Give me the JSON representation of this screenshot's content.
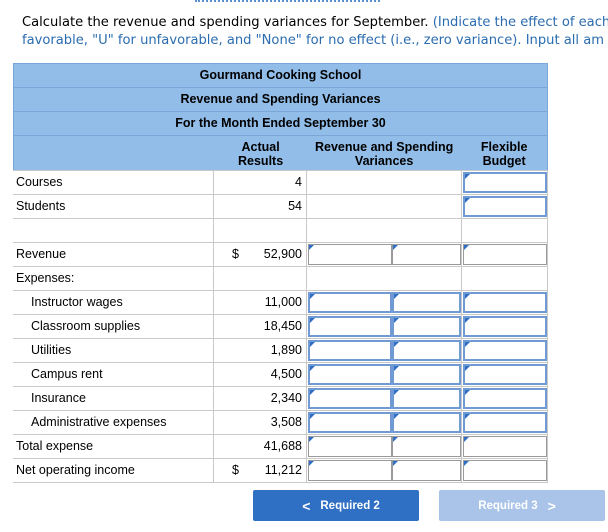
{
  "instructions": {
    "line1_black": "Calculate the revenue and spending variances for September. ",
    "line1_blue": "(Indicate the effect of each",
    "line2_blue": "favorable, \"U\" for unfavorable, and \"None\" for no effect (i.e., zero variance). Input all am"
  },
  "report": {
    "title1": "Gourmand Cooking School",
    "title2": "Revenue and Spending Variances",
    "title3": "For the Month Ended September 30",
    "col_actual": [
      "Actual",
      "Results"
    ],
    "col_variance": [
      "Revenue and Spending",
      "Variances"
    ],
    "col_flexible": [
      "Flexible",
      "Budget"
    ]
  },
  "rows": {
    "courses": {
      "label": "Courses",
      "actual": "4"
    },
    "students": {
      "label": "Students",
      "actual": "54"
    },
    "revenue": {
      "label": "Revenue",
      "currency": "$",
      "actual": "52,900"
    },
    "expenses": {
      "label": "Expenses:"
    },
    "instructor_wages": {
      "label": "Instructor wages",
      "actual": "11,000"
    },
    "classroom_supplies": {
      "label": "Classroom supplies",
      "actual": "18,450"
    },
    "utilities": {
      "label": "Utilities",
      "actual": "1,890"
    },
    "campus_rent": {
      "label": "Campus rent",
      "actual": "4,500"
    },
    "insurance": {
      "label": "Insurance",
      "actual": "2,340"
    },
    "admin_expenses": {
      "label": "Administrative expenses",
      "actual": "3,508"
    },
    "total_expense": {
      "label": "Total expense",
      "actual": "41,688"
    },
    "net_operating_income": {
      "label": "Net operating income",
      "currency": "$",
      "actual": "11,212"
    }
  },
  "nav": {
    "prev_label": "Required 2",
    "next_label": "Required 3",
    "prev_chevron": "<",
    "next_chevron": ">"
  }
}
